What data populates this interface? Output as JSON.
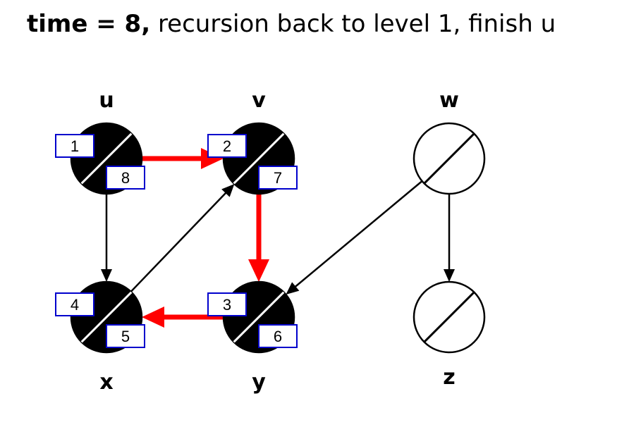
{
  "title": {
    "bold": "time = 8,",
    "rest": "recursion back to level 1, finish u"
  },
  "colors": {
    "visited_fill": "#000000",
    "unvisited_fill": "#ffffff",
    "tree_edge": "#ff0000",
    "edge": "#000000",
    "stamp_border": "#0000cc"
  },
  "nodes": [
    {
      "id": "u",
      "label": "u",
      "discovery": "1",
      "finish": "8",
      "state": "finished"
    },
    {
      "id": "v",
      "label": "v",
      "discovery": "2",
      "finish": "7",
      "state": "finished"
    },
    {
      "id": "w",
      "label": "w",
      "discovery": "",
      "finish": "",
      "state": "unvisited"
    },
    {
      "id": "x",
      "label": "x",
      "discovery": "4",
      "finish": "5",
      "state": "finished"
    },
    {
      "id": "y",
      "label": "y",
      "discovery": "3",
      "finish": "6",
      "state": "finished"
    },
    {
      "id": "z",
      "label": "z",
      "discovery": "",
      "finish": "",
      "state": "unvisited"
    }
  ],
  "edges": [
    {
      "from": "u",
      "to": "v",
      "tree": true
    },
    {
      "from": "u",
      "to": "x",
      "tree": false
    },
    {
      "from": "v",
      "to": "y",
      "tree": true
    },
    {
      "from": "y",
      "to": "x",
      "tree": true
    },
    {
      "from": "x",
      "to": "v",
      "tree": false
    },
    {
      "from": "w",
      "to": "y",
      "tree": false
    },
    {
      "from": "w",
      "to": "z",
      "tree": false
    }
  ]
}
